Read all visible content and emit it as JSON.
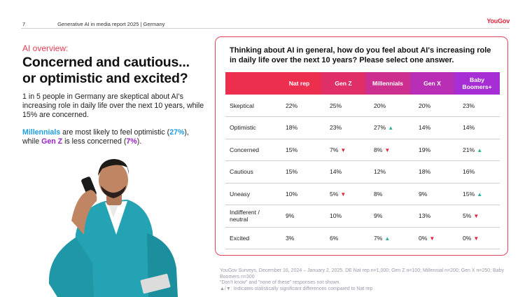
{
  "header": {
    "page_number": "7",
    "report_title": "Generative AI in media report 2025 | Germany",
    "logo": "YouGov"
  },
  "left": {
    "kicker": "AI overview:",
    "headline_line1": "Concerned and cautious...",
    "headline_line2": "or optimistic and excited?",
    "body1": "1 in 5 people in Germany are skeptical about AI's increasing role in daily life over the next 10 years, while 15% are concerned.",
    "body2": {
      "seg1": "Millennials",
      "seg2": " are most likely to feel optimistic (",
      "seg3": "27%",
      "seg4": "), while ",
      "seg5": "Gen Z",
      "seg6": " is less concerned (",
      "seg7": "7%",
      "seg8": ")."
    }
  },
  "table": {
    "question": "Thinking about AI in general, how do you feel about AI's increasing role in daily life over the next 10 years? Please select one answer.",
    "columns": [
      "Nat rep",
      "Gen Z",
      "Millennials",
      "Gen X",
      "Baby Boomers+"
    ],
    "header_colors": [
      "#ed2f4f",
      "#e02e66",
      "#cd2f8f",
      "#b82eb4",
      "#a62ed4"
    ],
    "rows": [
      {
        "label": "Skeptical",
        "cells": [
          {
            "v": "22%"
          },
          {
            "v": "25%"
          },
          {
            "v": "20%"
          },
          {
            "v": "20%"
          },
          {
            "v": "23%"
          }
        ]
      },
      {
        "label": "Optimistic",
        "cells": [
          {
            "v": "18%"
          },
          {
            "v": "23%"
          },
          {
            "v": "27%",
            "s": "up"
          },
          {
            "v": "14%"
          },
          {
            "v": "14%"
          }
        ]
      },
      {
        "label": "Concerned",
        "cells": [
          {
            "v": "15%"
          },
          {
            "v": "7%",
            "s": "down"
          },
          {
            "v": "8%",
            "s": "down"
          },
          {
            "v": "19%"
          },
          {
            "v": "21%",
            "s": "up"
          }
        ]
      },
      {
        "label": "Cautious",
        "cells": [
          {
            "v": "15%"
          },
          {
            "v": "14%"
          },
          {
            "v": "12%"
          },
          {
            "v": "18%"
          },
          {
            "v": "16%"
          }
        ]
      },
      {
        "label": "Uneasy",
        "cells": [
          {
            "v": "10%"
          },
          {
            "v": "5%",
            "s": "down"
          },
          {
            "v": "8%"
          },
          {
            "v": "9%"
          },
          {
            "v": "15%",
            "s": "up"
          }
        ]
      },
      {
        "label": "Indifferent / neutral",
        "cells": [
          {
            "v": "9%"
          },
          {
            "v": "10%"
          },
          {
            "v": "9%"
          },
          {
            "v": "13%"
          },
          {
            "v": "5%",
            "s": "down"
          }
        ]
      },
      {
        "label": "Excited",
        "cells": [
          {
            "v": "3%"
          },
          {
            "v": "6%"
          },
          {
            "v": "7%",
            "s": "up"
          },
          {
            "v": "0%",
            "s": "down"
          },
          {
            "v": "0%",
            "s": "down"
          }
        ]
      }
    ]
  },
  "footnote": {
    "line1": "YouGov Surveys, December 16, 2024 – January 2, 2025. DE Nat rep n=1,000; Gen Z n=100; Millennial n=200; Gen X n=250; Baby Boomers n=300",
    "line2": "\"Don't know\" and \"none of these\" responses not shown.",
    "line3": "▲/▼: Indicates statistically significant differences compared to Nat rep"
  }
}
